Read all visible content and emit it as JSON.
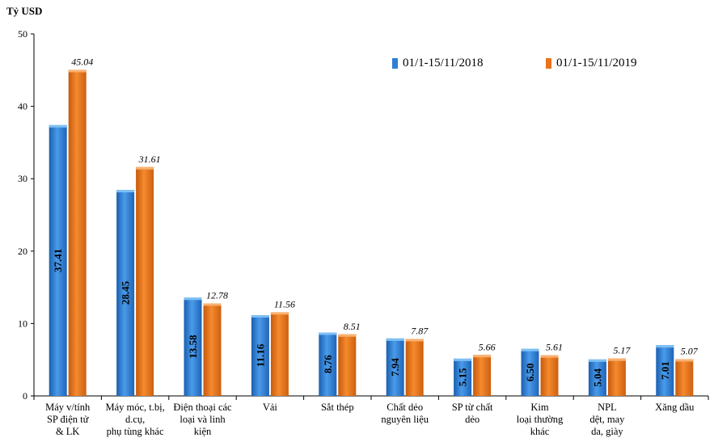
{
  "chart_data": {
    "type": "bar",
    "ylabel": "Tỷ USD",
    "ylim": [
      0,
      50
    ],
    "yticks": [
      0,
      10,
      20,
      30,
      40,
      50
    ],
    "categories": [
      [
        "Máy v/tính",
        "SP điện tử",
        "& LK"
      ],
      [
        "Máy móc, t.bị,",
        "d.cụ,",
        "phụ tùng khác"
      ],
      [
        "Điện thoại các",
        "loại và linh",
        "kiện"
      ],
      [
        "Vải"
      ],
      [
        "Sắt thép"
      ],
      [
        "Chất dẻo",
        "nguyên liệu"
      ],
      [
        "SP từ chất",
        "dẻo"
      ],
      [
        "Kim",
        "loại thường",
        "khác"
      ],
      [
        "NPL",
        "dệt, may",
        "da, giày"
      ],
      [
        "Xăng dầu"
      ]
    ],
    "series": [
      {
        "name": "01/1-15/11/2018",
        "color": "#2F7FD6",
        "values": [
          37.41,
          28.45,
          13.58,
          11.16,
          8.76,
          7.94,
          5.15,
          6.5,
          5.04,
          7.01
        ],
        "labels": [
          "37.41",
          "28.45",
          "13.58",
          "11.16",
          "8.76",
          "7.94",
          "5.15",
          "6.50",
          "5.04",
          "7.01"
        ]
      },
      {
        "name": "01/1-15/11/2019",
        "color": "#E8731A",
        "values": [
          45.04,
          31.61,
          12.78,
          11.56,
          8.51,
          7.87,
          5.66,
          5.61,
          5.17,
          5.07
        ],
        "labels": [
          "45.04",
          "31.61",
          "12.78",
          "11.56",
          "8.51",
          "7.87",
          "5.66",
          "5.61",
          "5.17",
          "5.07"
        ]
      }
    ],
    "legend_position": "top-right",
    "grid": false
  }
}
